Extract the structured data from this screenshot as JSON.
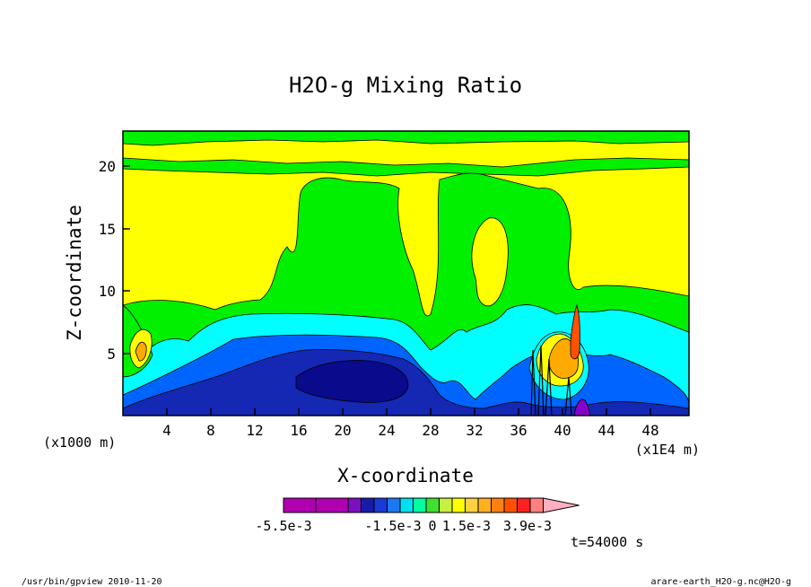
{
  "chart_data": {
    "type": "heatmap",
    "title": "H2O-g Mixing Ratio",
    "xlabel": "X-coordinate",
    "ylabel": "Z-coordinate",
    "x_unit_left": "(x1000 m)",
    "x_unit_right": "(x1E4 m)",
    "xlim": [
      0,
      51.5
    ],
    "ylim": [
      0,
      22.8
    ],
    "x_ticks": [
      "4",
      "8",
      "12",
      "16",
      "20",
      "24",
      "28",
      "32",
      "36",
      "40",
      "44",
      "48"
    ],
    "y_ticks": [
      "5",
      "10",
      "15",
      "20"
    ],
    "colorbar": {
      "labels": [
        "-5.5e-3",
        "-1.5e-3",
        "0",
        "1.5e-3",
        "3.9e-3"
      ],
      "colors": [
        "#b000b0",
        "#b000b0",
        "#7a10c0",
        "#1a1aa8",
        "#1a3ad8",
        "#1a78f0",
        "#00e0f0",
        "#00ffa0",
        "#40e030",
        "#c8f040",
        "#ffff00",
        "#ffd040",
        "#ffb020",
        "#ff8010",
        "#ff5000",
        "#ff2020",
        "#ff8080",
        "#ffb0c0"
      ]
    },
    "time_label": "t=54000 s"
  },
  "footer": {
    "left": "/usr/bin/gpview   2010-11-20",
    "right": "arare-earth_H2O-g.nc@H2O-g"
  },
  "colors": {
    "green": "#00f000",
    "yellow": "#ffff00",
    "cyan": "#00ffff",
    "blue": "#0064ff",
    "navy": "#1428b4",
    "darknavy": "#0a0a8c",
    "orange": "#ffaa00",
    "purple": "#8800cc"
  }
}
